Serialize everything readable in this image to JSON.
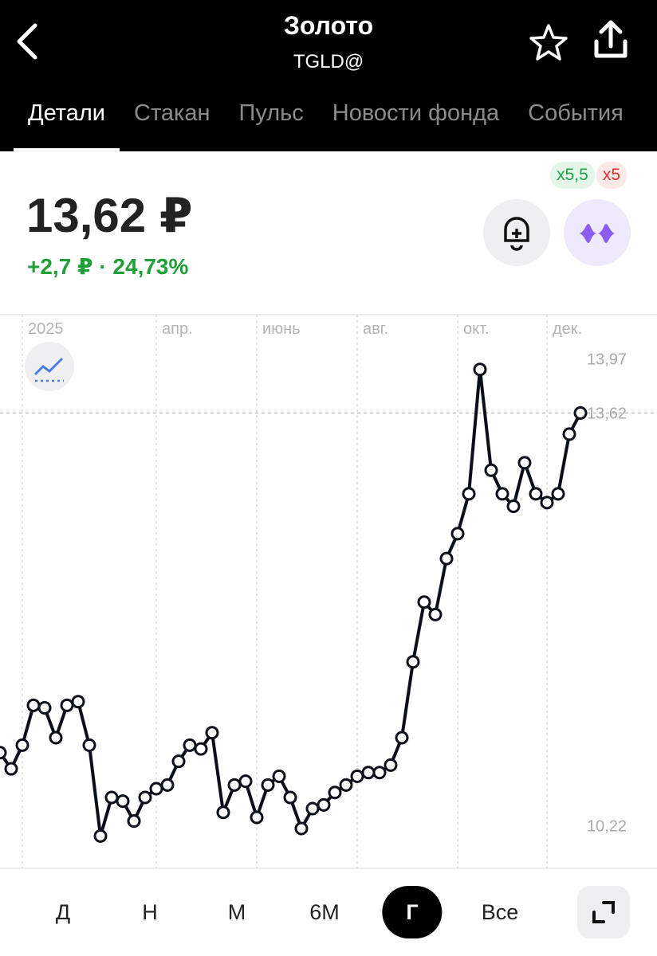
{
  "header": {
    "title": "Золото",
    "ticker": "TGLD@"
  },
  "tabs": {
    "items": [
      "Детали",
      "Стакан",
      "Пульс",
      "Новости фонда",
      "События"
    ],
    "active": 0
  },
  "badges": [
    {
      "text": "x5,5",
      "color": "#1fa34a",
      "background": "#e3f6e8"
    },
    {
      "text": "x5",
      "color": "#e0302f",
      "background": "#fde8e8"
    }
  ],
  "price": {
    "value": "13,62 ₽",
    "change": "+2,7 ₽ · 24,73%"
  },
  "chart_data": {
    "type": "line",
    "categories": [
      null,
      null,
      "2025",
      null,
      null,
      null,
      null,
      null,
      null,
      null,
      null,
      null,
      null,
      null,
      "апр.",
      null,
      null,
      null,
      null,
      null,
      null,
      null,
      null,
      "июнь",
      null,
      null,
      null,
      null,
      null,
      null,
      null,
      null,
      "авг.",
      null,
      null,
      null,
      null,
      null,
      null,
      null,
      null,
      "окт.",
      null,
      null,
      null,
      null,
      null,
      null,
      null,
      "дек.",
      null,
      null,
      null
    ],
    "series": [
      {
        "name": "TGLD@",
        "color": "#0b0f1a",
        "values": [
          10.89,
          10.76,
          10.95,
          11.27,
          11.25,
          11.01,
          11.27,
          11.3,
          10.95,
          10.22,
          10.53,
          10.5,
          10.34,
          10.53,
          10.6,
          10.63,
          10.82,
          10.95,
          10.92,
          11.05,
          10.41,
          10.63,
          10.66,
          10.37,
          10.63,
          10.7,
          10.53,
          10.28,
          10.44,
          10.47,
          10.57,
          10.63,
          10.7,
          10.73,
          10.73,
          10.79,
          11.01,
          11.62,
          12.1,
          12.0,
          12.45,
          12.65,
          12.97,
          13.97,
          13.16,
          12.97,
          12.87,
          13.22,
          12.97,
          12.9,
          12.97,
          13.45,
          13.62
        ]
      }
    ],
    "ylim": [
      9.96,
      14.41
    ],
    "yticks": [
      {
        "value": 13.97,
        "label": "13,97"
      },
      {
        "value": 10.22,
        "label": "10,22"
      }
    ],
    "current": {
      "value": 13.62,
      "label": "13,62"
    }
  },
  "periods": {
    "items": [
      "Д",
      "Н",
      "М",
      "6М",
      "Г",
      "Все"
    ],
    "active": 4
  }
}
